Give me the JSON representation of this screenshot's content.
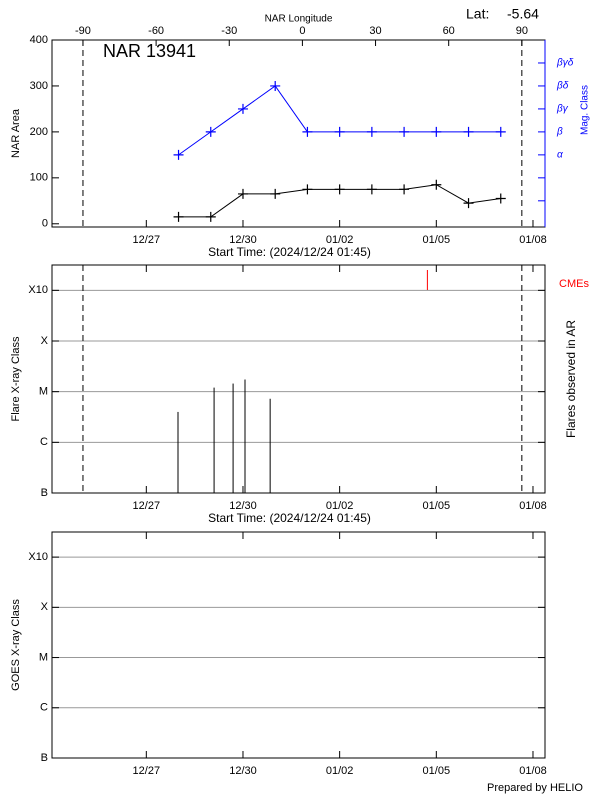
{
  "chart_data": [
    {
      "type": "line",
      "title": "NAR 13941",
      "lat_label": "Lat:",
      "lat": -5.64,
      "x2label": "NAR Longitude",
      "xlabel": "Start Time: (2024/12/24 01:45)",
      "ylabel": "NAR Area",
      "y2label": "Mag. Class",
      "xlim": [
        0,
        15.3
      ],
      "xticks": [
        {
          "value": 2.927,
          "label": "12/27"
        },
        {
          "value": 5.927,
          "label": "12/30"
        },
        {
          "value": 8.927,
          "label": "01/02"
        },
        {
          "value": 11.927,
          "label": "01/05"
        },
        {
          "value": 14.927,
          "label": "01/08"
        }
      ],
      "x2lim": [
        -102.7,
        99.5
      ],
      "x2ticks": [
        -90,
        -60,
        -30,
        0,
        30,
        60,
        90
      ],
      "vlines": [
        -90,
        90
      ],
      "ylim": [
        -7,
        400
      ],
      "yticks": [
        0,
        100,
        200,
        300,
        400
      ],
      "y2lim": [
        -0.14,
        8
      ],
      "y2minorticks": [
        1,
        2
      ],
      "y2ticks": [
        {
          "value": 3,
          "label": "α"
        },
        {
          "value": 4,
          "label": "β"
        },
        {
          "value": 5,
          "label": "βγ"
        },
        {
          "value": 6,
          "label": "βδ"
        },
        {
          "value": 7,
          "label": "βγδ"
        }
      ],
      "x": [
        3.927,
        4.927,
        5.927,
        6.927,
        7.927,
        8.927,
        9.927,
        10.927,
        11.927,
        12.927,
        13.927
      ],
      "series": [
        {
          "color": "#000000",
          "values": [
            15,
            15,
            65,
            65,
            75,
            75,
            75,
            75,
            85,
            45,
            55
          ]
        },
        {
          "color": "#0000ff",
          "axis": "y2",
          "values": [
            3,
            4,
            5,
            6,
            4,
            4,
            4,
            4,
            4,
            4,
            4
          ]
        }
      ]
    },
    {
      "type": "stem",
      "xlabel": "Start Time: (2024/12/24 01:45)",
      "ylabel": "Flare X-ray Class",
      "y2label": "Flares observed in AR",
      "xlim": [
        0,
        15.3
      ],
      "xticks": [
        {
          "value": 2.927,
          "label": "12/27"
        },
        {
          "value": 5.927,
          "label": "12/30"
        },
        {
          "value": 8.927,
          "label": "01/02"
        },
        {
          "value": 11.927,
          "label": "01/05"
        },
        {
          "value": 14.927,
          "label": "01/08"
        }
      ],
      "x2lim": [
        -102.7,
        99.5
      ],
      "vlines": [
        -90,
        90
      ],
      "ylim": [
        0,
        4.5
      ],
      "yticks": [
        {
          "value": 0,
          "label": "B"
        },
        {
          "value": 1,
          "label": "C"
        },
        {
          "value": 2,
          "label": "M"
        },
        {
          "value": 3,
          "label": "X"
        },
        {
          "value": 4,
          "label": "X10"
        }
      ],
      "grid": true,
      "color": "#000000",
      "x": [
        3.91,
        5.03,
        5.62,
        5.99,
        6.77
      ],
      "values": [
        1.6,
        2.08,
        2.16,
        2.24,
        1.86
      ],
      "events": {
        "name": "CMEs",
        "color": "#ff0000",
        "x": [
          11.65
        ]
      }
    },
    {
      "type": "line",
      "ylabel": "GOES X-ray Class",
      "xlim": [
        0,
        15.3
      ],
      "xticks": [
        {
          "value": 2.927,
          "label": "12/27"
        },
        {
          "value": 5.927,
          "label": "12/30"
        },
        {
          "value": 8.927,
          "label": "01/02"
        },
        {
          "value": 11.927,
          "label": "01/05"
        },
        {
          "value": 14.927,
          "label": "01/08"
        }
      ],
      "ylim": [
        0,
        4.5
      ],
      "yticks": [
        {
          "value": 0,
          "label": "B"
        },
        {
          "value": 1,
          "label": "C"
        },
        {
          "value": 2,
          "label": "M"
        },
        {
          "value": 3,
          "label": "X"
        },
        {
          "value": 4,
          "label": "X10"
        }
      ],
      "grid": true
    }
  ],
  "footer": "Prepared by HELIO"
}
